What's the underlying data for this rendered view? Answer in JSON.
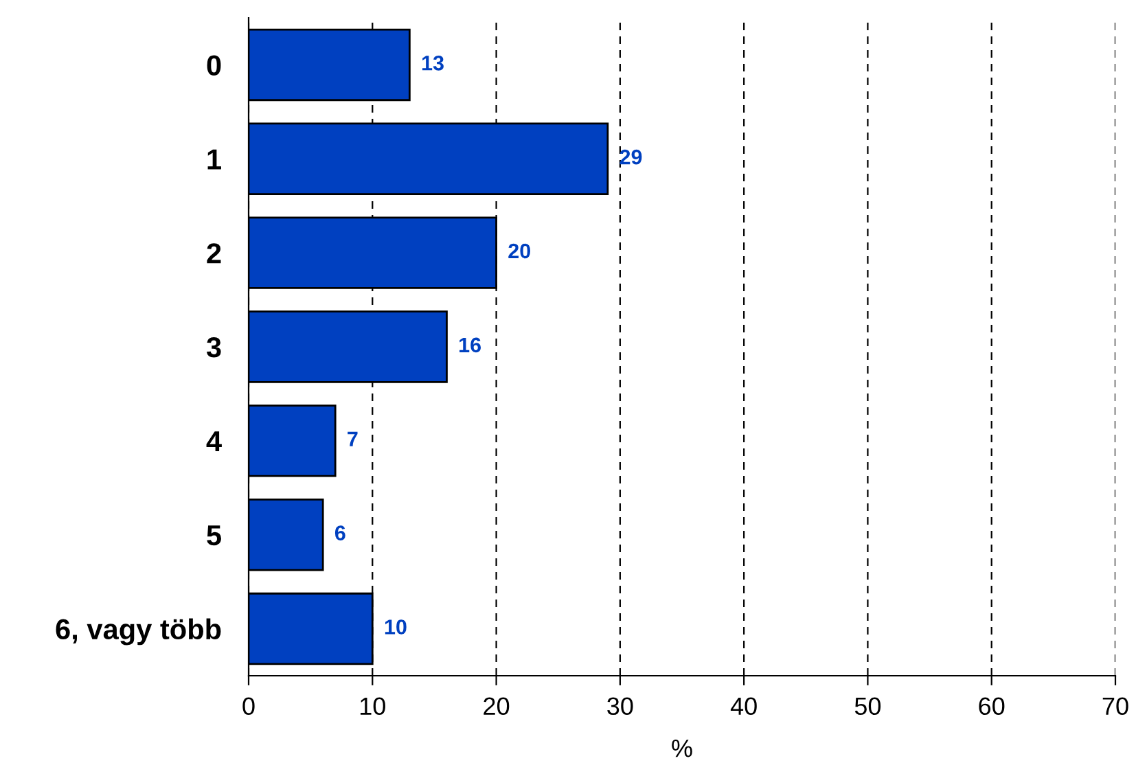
{
  "chart_data": {
    "type": "bar",
    "orientation": "horizontal",
    "categories": [
      "0",
      "1",
      "2",
      "3",
      "4",
      "5",
      "6, vagy több"
    ],
    "values": [
      13,
      29,
      20,
      16,
      7,
      6,
      10
    ],
    "color": "#0040c0",
    "data_labels": true,
    "xlabel": "%",
    "xlim": [
      0,
      70
    ],
    "xticks": [
      0,
      10,
      20,
      30,
      40,
      50,
      60,
      70
    ],
    "grid": "x"
  }
}
